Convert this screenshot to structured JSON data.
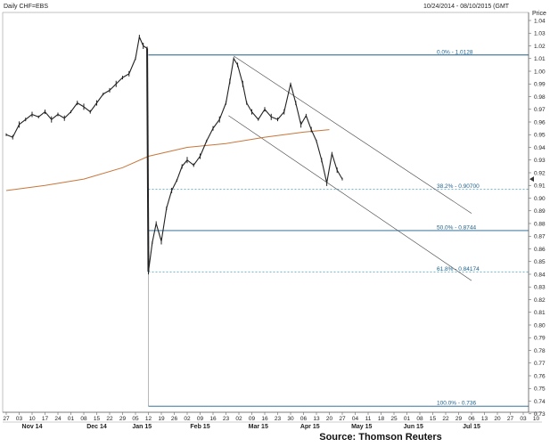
{
  "header": {
    "title": "Daily CHF=EBS",
    "date_range": "10/24/2014 - 08/10/2015 (GMT",
    "price_label": "Price"
  },
  "source": "Source: Thomson Reuters",
  "chart_data": {
    "type": "candlestick",
    "title": "Daily CHF=EBS",
    "ylabel": "Price",
    "ylim": [
      0.725,
      1.045
    ],
    "y_ticks": [
      1.04,
      1.03,
      1.02,
      1.01,
      1.0,
      0.99,
      0.98,
      0.97,
      0.96,
      0.95,
      0.94,
      0.93,
      0.92,
      0.91,
      0.9,
      0.89,
      0.88,
      0.87,
      0.86,
      0.85,
      0.84,
      0.83,
      0.82,
      0.81,
      0.8,
      0.79,
      0.78,
      0.77,
      0.76,
      0.75,
      0.74,
      0.73
    ],
    "x_tick_labels": [
      "27",
      "03",
      "10",
      "17",
      "24",
      "01",
      "08",
      "15",
      "22",
      "29",
      "05",
      "12",
      "19",
      "26",
      "02",
      "09",
      "16",
      "23",
      "02",
      "09",
      "16",
      "23",
      "30",
      "06",
      "13",
      "20",
      "27",
      "04",
      "11",
      "18",
      "25",
      "01",
      "08",
      "15",
      "22",
      "29",
      "06",
      "13",
      "20",
      "27",
      "03",
      "10"
    ],
    "month_labels": [
      "Nov 14",
      "Dec 14",
      "Jan 15",
      "Feb 15",
      "Mar 15",
      "Apr 15",
      "May 15",
      "Jun 15",
      "Jul 15"
    ],
    "month_label_ticks": [
      2,
      7,
      10.5,
      15,
      19.5,
      23.5,
      27.5,
      31.5,
      36
    ],
    "swiss_unpeg_drop": {
      "tick_index": 11,
      "from": 1.0128,
      "to": 0.8417
    },
    "close_path": [
      [
        0,
        0.95
      ],
      [
        0.5,
        0.948
      ],
      [
        1,
        0.958
      ],
      [
        1.5,
        0.962
      ],
      [
        2,
        0.966
      ],
      [
        2.5,
        0.964
      ],
      [
        3,
        0.968
      ],
      [
        3.5,
        0.962
      ],
      [
        4,
        0.966
      ],
      [
        4.5,
        0.963
      ],
      [
        5,
        0.968
      ],
      [
        5.5,
        0.975
      ],
      [
        6,
        0.972
      ],
      [
        6.5,
        0.968
      ],
      [
        7,
        0.975
      ],
      [
        7.5,
        0.982
      ],
      [
        8,
        0.985
      ],
      [
        8.5,
        0.99
      ],
      [
        9,
        0.995
      ],
      [
        9.5,
        0.998
      ],
      [
        10,
        1.01
      ],
      [
        10.3,
        1.027
      ],
      [
        10.6,
        1.02
      ],
      [
        10.9,
        1.018
      ],
      [
        11,
        0.842
      ],
      [
        11.3,
        0.865
      ],
      [
        11.6,
        0.88
      ],
      [
        12,
        0.866
      ],
      [
        12.4,
        0.892
      ],
      [
        12.8,
        0.906
      ],
      [
        13.2,
        0.914
      ],
      [
        13.6,
        0.925
      ],
      [
        14,
        0.93
      ],
      [
        14.5,
        0.926
      ],
      [
        15,
        0.933
      ],
      [
        15.5,
        0.945
      ],
      [
        16,
        0.955
      ],
      [
        16.5,
        0.962
      ],
      [
        17,
        0.975
      ],
      [
        17.3,
        0.992
      ],
      [
        17.6,
        1.01
      ],
      [
        17.9,
        1.005
      ],
      [
        18.3,
        0.99
      ],
      [
        18.6,
        0.975
      ],
      [
        19,
        0.968
      ],
      [
        19.5,
        0.962
      ],
      [
        20,
        0.97
      ],
      [
        20.5,
        0.964
      ],
      [
        21,
        0.962
      ],
      [
        21.5,
        0.968
      ],
      [
        22,
        0.99
      ],
      [
        22.4,
        0.975
      ],
      [
        22.8,
        0.958
      ],
      [
        23.2,
        0.965
      ],
      [
        23.6,
        0.954
      ],
      [
        24,
        0.945
      ],
      [
        24.4,
        0.93
      ],
      [
        24.8,
        0.912
      ],
      [
        25.2,
        0.935
      ],
      [
        25.6,
        0.922
      ],
      [
        26,
        0.915
      ]
    ],
    "moving_average": [
      [
        0,
        0.906
      ],
      [
        3,
        0.91
      ],
      [
        6,
        0.915
      ],
      [
        9,
        0.924
      ],
      [
        11,
        0.933
      ],
      [
        14,
        0.94
      ],
      [
        17,
        0.943
      ],
      [
        20,
        0.948
      ],
      [
        23,
        0.952
      ],
      [
        25,
        0.954
      ]
    ],
    "channel_upper": [
      [
        17.6,
        1.012
      ],
      [
        36,
        0.888
      ]
    ],
    "channel_lower": [
      [
        17.2,
        0.965
      ],
      [
        36,
        0.835
      ]
    ],
    "fibonacci_levels": [
      {
        "label": "0.0% - 1.0128",
        "value": 1.0128,
        "style": "solid"
      },
      {
        "label": "38.2% - 0.90700",
        "value": 0.907,
        "style": "dashed"
      },
      {
        "label": "50.0% - 0.8744",
        "value": 0.8744,
        "style": "solid"
      },
      {
        "label": "61.8% - 0.84174",
        "value": 0.84174,
        "style": "dashed"
      },
      {
        "label": "100.0% - 0.736",
        "value": 0.736,
        "style": "solid"
      }
    ],
    "last_price_marker": 0.915,
    "colors": {
      "price": "#222222",
      "moving_average": "#c8763a",
      "fibonacci": "#1b5f8c",
      "fibonacci_dashed": "#4aa0cc",
      "channel": "#444444"
    }
  }
}
